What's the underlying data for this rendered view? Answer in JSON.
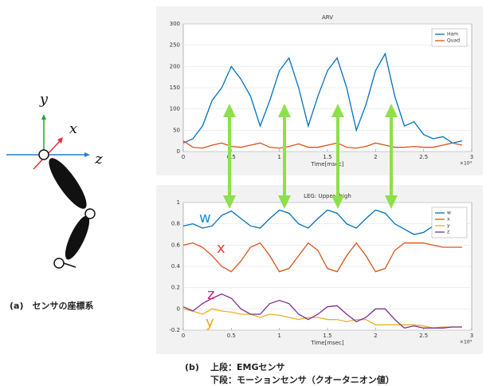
{
  "chart_data": [
    {
      "type": "line",
      "title": "ARV",
      "xlabel": "Time[msec]",
      "x_exponent_label": "×10⁴",
      "x": [
        0,
        0.1,
        0.2,
        0.3,
        0.4,
        0.5,
        0.6,
        0.7,
        0.8,
        0.9,
        1.0,
        1.1,
        1.2,
        1.3,
        1.4,
        1.5,
        1.6,
        1.7,
        1.8,
        1.9,
        2.0,
        2.1,
        2.2,
        2.3,
        2.4,
        2.5,
        2.6,
        2.7,
        2.8,
        2.9
      ],
      "series": [
        {
          "name": "Ham",
          "color": "#0072bd",
          "values": [
            20,
            30,
            60,
            120,
            150,
            200,
            170,
            130,
            60,
            120,
            190,
            220,
            150,
            60,
            130,
            190,
            220,
            150,
            50,
            110,
            190,
            230,
            130,
            60,
            70,
            40,
            30,
            35,
            20,
            25
          ]
        },
        {
          "name": "Quad",
          "color": "#d95319",
          "values": [
            25,
            10,
            8,
            15,
            20,
            12,
            10,
            15,
            20,
            10,
            8,
            12,
            18,
            10,
            10,
            15,
            20,
            10,
            8,
            12,
            20,
            15,
            10,
            10,
            12,
            10,
            10,
            15,
            20,
            15
          ]
        }
      ],
      "xlim": [
        0,
        3
      ],
      "xticks": [
        0,
        0.5,
        1,
        1.5,
        2,
        2.5,
        3
      ],
      "ylim": [
        0,
        300
      ],
      "yticks": [
        0,
        50,
        100,
        150,
        200,
        250,
        300
      ],
      "legend": "top-right"
    },
    {
      "type": "line",
      "title": "LEG: Upper thigh",
      "xlabel": "Time[msec]",
      "x_exponent_label": "×10⁴",
      "x": [
        0,
        0.1,
        0.2,
        0.3,
        0.4,
        0.5,
        0.6,
        0.7,
        0.8,
        0.9,
        1.0,
        1.1,
        1.2,
        1.3,
        1.4,
        1.5,
        1.6,
        1.7,
        1.8,
        1.9,
        2.0,
        2.1,
        2.2,
        2.3,
        2.4,
        2.5,
        2.6,
        2.7,
        2.8,
        2.9
      ],
      "series": [
        {
          "name": "w",
          "color": "#0072bd",
          "values": [
            0.78,
            0.8,
            0.76,
            0.78,
            0.88,
            0.92,
            0.85,
            0.78,
            0.76,
            0.85,
            0.93,
            0.9,
            0.8,
            0.76,
            0.85,
            0.93,
            0.9,
            0.8,
            0.76,
            0.85,
            0.93,
            0.9,
            0.8,
            0.75,
            0.7,
            0.72,
            0.78,
            0.8,
            0.78,
            0.78
          ]
        },
        {
          "name": "x",
          "color": "#d95319",
          "values": [
            0.6,
            0.62,
            0.58,
            0.5,
            0.4,
            0.35,
            0.45,
            0.58,
            0.62,
            0.5,
            0.35,
            0.38,
            0.5,
            0.62,
            0.55,
            0.38,
            0.35,
            0.5,
            0.62,
            0.5,
            0.35,
            0.38,
            0.55,
            0.62,
            0.62,
            0.62,
            0.6,
            0.58,
            0.58,
            0.58
          ]
        },
        {
          "name": "y",
          "color": "#edb120",
          "values": [
            0.0,
            -0.02,
            -0.05,
            0.0,
            -0.02,
            -0.03,
            -0.05,
            -0.05,
            -0.08,
            -0.05,
            -0.06,
            -0.08,
            -0.1,
            -0.08,
            -0.08,
            -0.1,
            -0.1,
            -0.12,
            -0.1,
            -0.1,
            -0.15,
            -0.15,
            -0.15,
            -0.15,
            -0.15,
            -0.16,
            -0.18,
            -0.17,
            -0.17,
            -0.17
          ]
        },
        {
          "name": "z",
          "color": "#7e2f8e",
          "values": [
            0.02,
            -0.02,
            0.05,
            0.1,
            0.14,
            0.1,
            0.0,
            -0.05,
            -0.05,
            0.05,
            0.08,
            0.05,
            -0.05,
            -0.1,
            -0.05,
            0.02,
            0.03,
            -0.05,
            -0.12,
            -0.08,
            0.0,
            0.0,
            -0.1,
            -0.18,
            -0.16,
            -0.18,
            -0.18,
            -0.18,
            -0.17,
            -0.17
          ]
        }
      ],
      "annotations": [
        {
          "text": "w",
          "color": "#1a8fd6"
        },
        {
          "text": "x",
          "color": "#e8412b"
        },
        {
          "text": "z",
          "color": "#e0287a"
        },
        {
          "text": "y",
          "color": "#e8a820"
        }
      ],
      "xlim": [
        0,
        3
      ],
      "xticks": [
        0,
        0.5,
        1,
        1.5,
        2,
        2.5,
        3
      ],
      "ylim": [
        -0.2,
        1
      ],
      "yticks": [
        -0.2,
        0,
        0.2,
        0.4,
        0.6,
        0.8,
        1
      ],
      "legend": "top-right"
    }
  ],
  "diagram": {
    "axis_y": "y",
    "axis_x": "x",
    "axis_z": "z",
    "caption": "(a)　センサの座標系"
  },
  "caption": {
    "label": "(b)",
    "line1": "上段：EMGセンサ",
    "line2": "下段：モーションセンサ（クオータニオン値）"
  }
}
